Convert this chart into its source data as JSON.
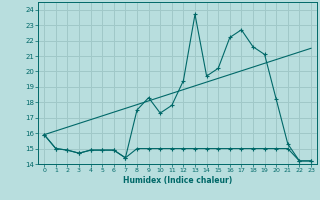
{
  "xlabel": "Humidex (Indice chaleur)",
  "xlim": [
    -0.5,
    23.5
  ],
  "ylim": [
    14,
    24.5
  ],
  "yticks": [
    14,
    15,
    16,
    17,
    18,
    19,
    20,
    21,
    22,
    23,
    24
  ],
  "xticks": [
    0,
    1,
    2,
    3,
    4,
    5,
    6,
    7,
    8,
    9,
    10,
    11,
    12,
    13,
    14,
    15,
    16,
    17,
    18,
    19,
    20,
    21,
    22,
    23
  ],
  "bg_color": "#b8dede",
  "grid_color": "#a0c8c8",
  "line_color": "#006868",
  "series1_x": [
    0,
    1,
    2,
    3,
    4,
    5,
    6,
    7,
    8,
    9,
    10,
    11,
    12,
    13,
    14,
    15,
    16,
    17,
    18,
    19,
    20,
    21,
    22,
    23
  ],
  "series1_y": [
    15.9,
    15.0,
    14.9,
    14.7,
    14.9,
    14.9,
    14.9,
    14.4,
    17.5,
    18.3,
    17.3,
    17.8,
    19.4,
    23.7,
    19.7,
    20.2,
    22.2,
    22.7,
    21.6,
    21.1,
    18.2,
    15.3,
    14.2,
    14.2
  ],
  "series2_x": [
    0,
    1,
    2,
    3,
    4,
    5,
    6,
    7,
    8,
    9,
    10,
    11,
    12,
    13,
    14,
    15,
    16,
    17,
    18,
    19,
    20,
    21,
    22,
    23
  ],
  "series2_y": [
    15.9,
    15.0,
    14.9,
    14.7,
    14.9,
    14.9,
    14.9,
    14.4,
    15.0,
    15.0,
    15.0,
    15.0,
    15.0,
    15.0,
    15.0,
    15.0,
    15.0,
    15.0,
    15.0,
    15.0,
    15.0,
    15.0,
    14.2,
    14.2
  ],
  "series3_x": [
    0,
    23
  ],
  "series3_y": [
    15.9,
    21.5
  ]
}
